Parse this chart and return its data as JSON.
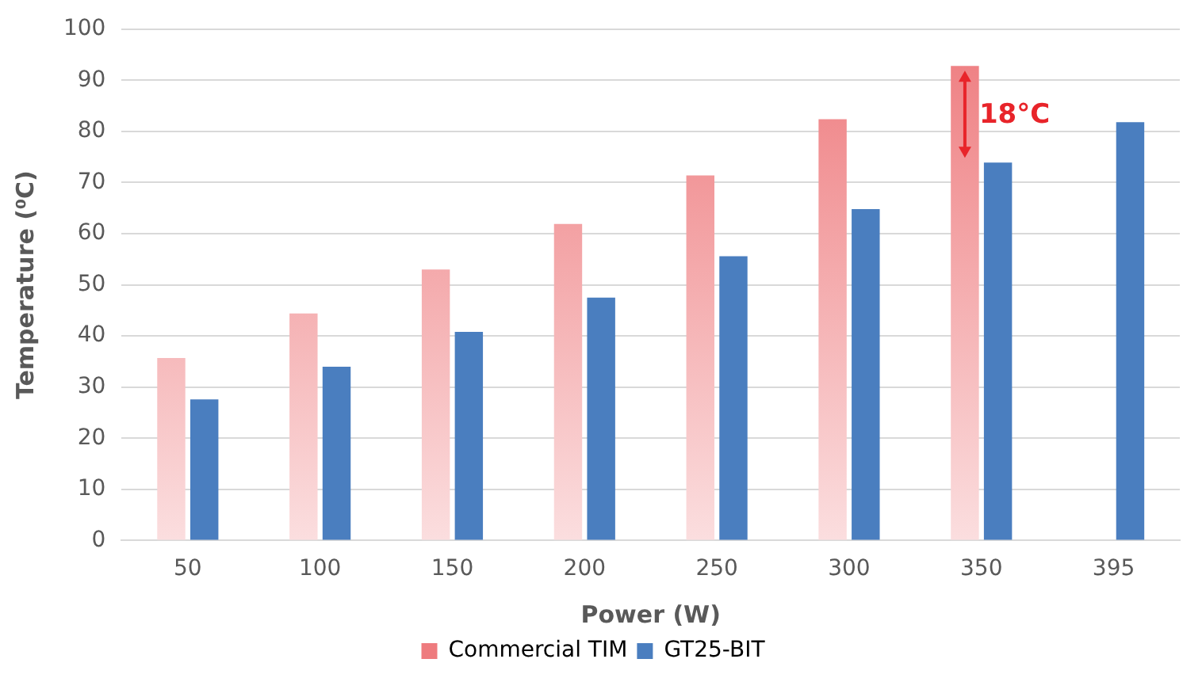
{
  "chart_data": {
    "type": "bar",
    "xlabel": "Power (W)",
    "ylabel": "Temperature (⁰C)",
    "categories": [
      "50",
      "100",
      "150",
      "200",
      "250",
      "300",
      "350",
      "395"
    ],
    "series": [
      {
        "name": "Commercial TIM",
        "color": "#ee7b7e",
        "values": [
          35.7,
          44.4,
          53.0,
          61.9,
          71.4,
          82.4,
          92.8,
          null
        ]
      },
      {
        "name": "GT25-BIT",
        "color": "#4a7ebf",
        "values": [
          27.6,
          34.0,
          40.8,
          47.5,
          55.6,
          64.8,
          73.9,
          81.8
        ]
      }
    ],
    "ylim": [
      0,
      100
    ],
    "yticks": [
      0,
      10,
      20,
      30,
      40,
      50,
      60,
      70,
      80,
      90,
      100
    ],
    "grid": "y",
    "legend": "bottom",
    "annotations": [
      {
        "text": "18°C",
        "x": "350",
        "y": 83
      }
    ]
  }
}
